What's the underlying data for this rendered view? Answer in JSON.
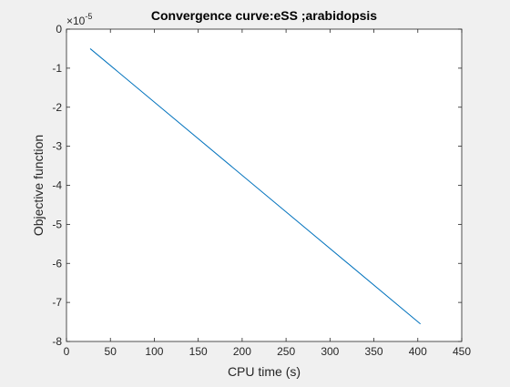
{
  "chart_data": {
    "type": "line",
    "title": "Convergence curve:eSS ;arabidopsis",
    "xlabel": "CPU time (s)",
    "ylabel": "Objective function",
    "y_exponent_label": "×10",
    "y_exponent_power": "-5",
    "xlim": [
      0,
      450
    ],
    "ylim": [
      -8,
      0
    ],
    "x_ticks": [
      "0",
      "50",
      "100",
      "150",
      "200",
      "250",
      "300",
      "350",
      "400",
      "450"
    ],
    "y_ticks": [
      "0",
      "-1",
      "-2",
      "-3",
      "-4",
      "-5",
      "-6",
      "-7",
      "-8"
    ],
    "x_tick_values": [
      0,
      50,
      100,
      150,
      200,
      250,
      300,
      350,
      400,
      450
    ],
    "y_tick_values": [
      0,
      -1,
      -2,
      -3,
      -4,
      -5,
      -6,
      -7,
      -8
    ],
    "grid": false,
    "series": [
      {
        "color": "#0072bd",
        "x": [
          27,
          403
        ],
        "y": [
          -0.5,
          -7.55
        ]
      }
    ]
  }
}
